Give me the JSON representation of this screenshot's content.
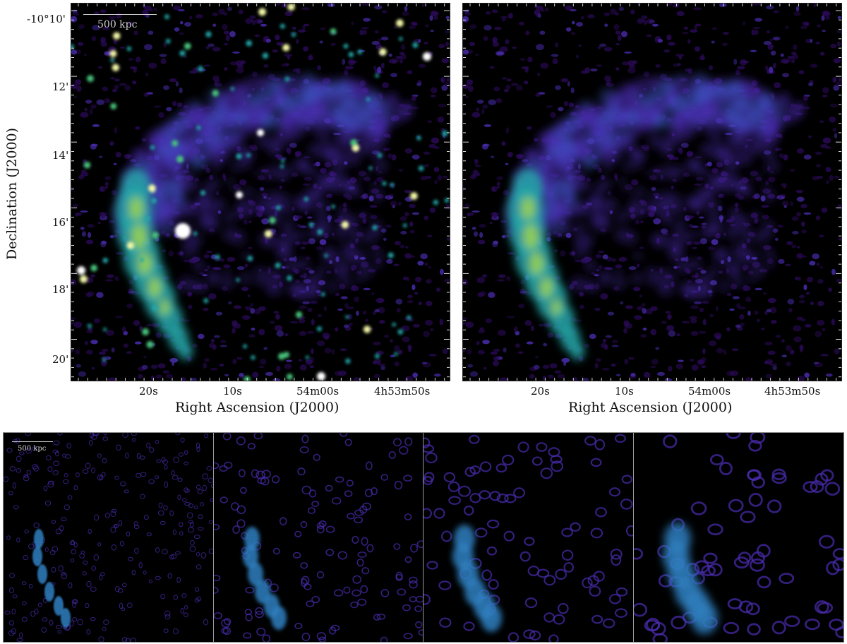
{
  "colors": {
    "background": "#000000",
    "colormap": [
      "#2a0a57",
      "#4a2cb0",
      "#3c59c7",
      "#2f7fc0",
      "#24a6a8",
      "#46c37a",
      "#a0d44a",
      "#f2f7a6",
      "#ffffff"
    ]
  },
  "scalebar": {
    "label": "500 kpc"
  },
  "top_panels": {
    "yaxis": {
      "title": "Declination (J2000)",
      "ticks": [
        "-10°10'",
        "12'",
        "14'",
        "16'",
        "18'",
        "20'"
      ]
    },
    "xaxis": {
      "title": "Right Ascension (J2000)",
      "ticks": [
        "20s",
        "10s",
        "54m00s",
        "4h53m50s"
      ]
    }
  },
  "bottom_strip": {
    "count": 4,
    "scalebar_label": "500 kpc"
  }
}
